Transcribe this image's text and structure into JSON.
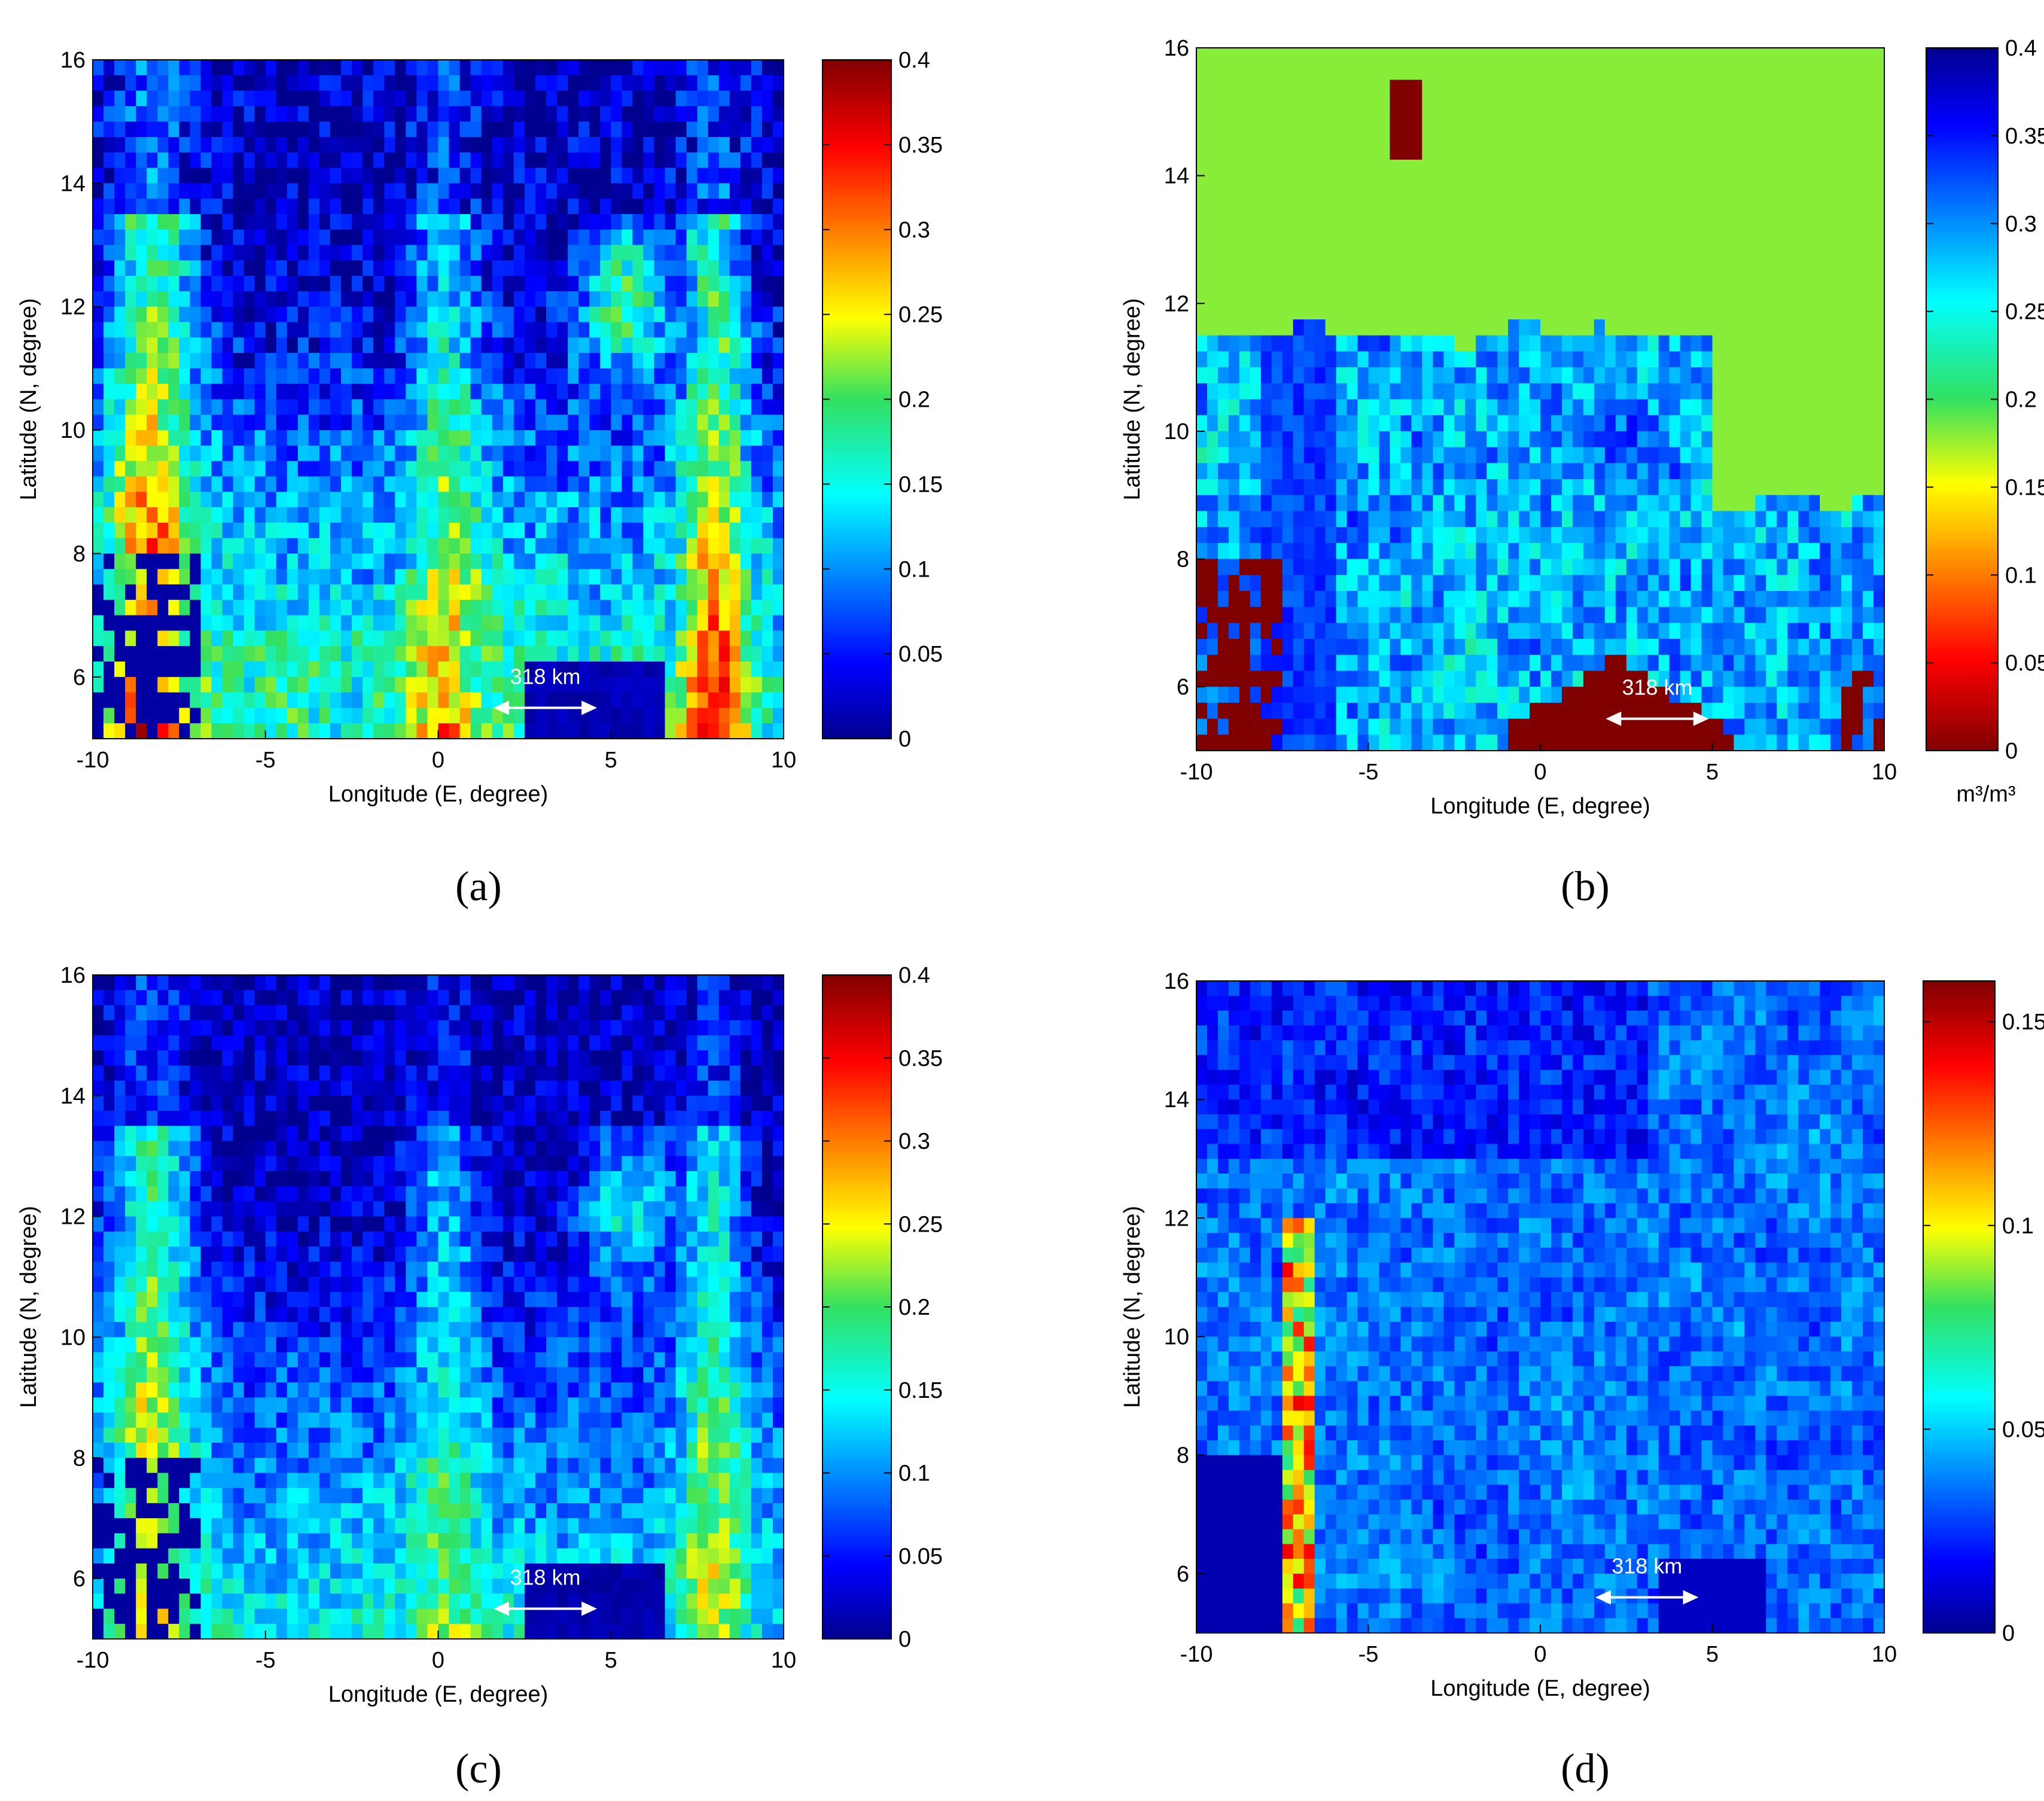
{
  "chart_data": [
    {
      "type": "heatmap",
      "panel_label": "(a)",
      "xlabel": "Longitude (E, degree)",
      "ylabel": "Latitude (N, degree)",
      "xlim": [
        -10,
        10
      ],
      "ylim": [
        5,
        16
      ],
      "xticks": [
        "-10",
        "-5",
        "0",
        "5",
        "10"
      ],
      "yticks": [
        "6",
        "8",
        "10",
        "12",
        "14",
        "16"
      ],
      "colorbar": {
        "range": [
          0,
          0.4
        ],
        "ticks": [
          "0",
          "0.05",
          "0.1",
          "0.15",
          "0.2",
          "0.25",
          "0.3",
          "0.35",
          "0.4"
        ],
        "colormap": "jet",
        "reversed": false,
        "unit": ""
      },
      "scalebar": {
        "label": "318 km",
        "from_lon": 1.6,
        "to_lon": 4.6,
        "lat": 5.5
      },
      "pattern": "wet-south",
      "seed": 11
    },
    {
      "type": "heatmap",
      "panel_label": "(b)",
      "xlabel": "Longitude (E, degree)",
      "ylabel": "Latitude (N, degree)",
      "xlim": [
        -10,
        10
      ],
      "ylim": [
        5,
        16
      ],
      "xticks": [
        "-10",
        "-5",
        "0",
        "5",
        "10"
      ],
      "yticks": [
        "6",
        "8",
        "10",
        "12",
        "14",
        "16"
      ],
      "colorbar": {
        "range": [
          0,
          0.4
        ],
        "ticks": [
          "0",
          "0.05",
          "0.1",
          "0.15",
          "0.2",
          "0.25",
          "0.3",
          "0.35",
          "0.4"
        ],
        "colormap": "jet",
        "reversed": true,
        "unit": "m³/m³"
      },
      "scalebar": {
        "label": "318 km",
        "from_lon": 1.9,
        "to_lon": 4.9,
        "lat": 5.5
      },
      "pattern": "dry-north",
      "seed": 23
    },
    {
      "type": "heatmap",
      "panel_label": "(c)",
      "xlabel": "Longitude (E, degree)",
      "ylabel": "Latitude (N, degree)",
      "xlim": [
        -10,
        10
      ],
      "ylim": [
        5,
        16
      ],
      "xticks": [
        "-10",
        "-5",
        "0",
        "5",
        "10"
      ],
      "yticks": [
        "6",
        "8",
        "10",
        "12",
        "14",
        "16"
      ],
      "colorbar": {
        "range": [
          0,
          0.4
        ],
        "ticks": [
          "0",
          "0.05",
          "0.1",
          "0.15",
          "0.2",
          "0.25",
          "0.3",
          "0.35",
          "0.4"
        ],
        "colormap": "jet",
        "reversed": false,
        "unit": ""
      },
      "scalebar": {
        "label": "318 km",
        "from_lon": 1.6,
        "to_lon": 4.6,
        "lat": 5.5
      },
      "pattern": "wet-south-muted",
      "seed": 37
    },
    {
      "type": "heatmap",
      "panel_label": "(d)",
      "xlabel": "Longitude (E, degree)",
      "ylabel": "Latitude (N, degree)",
      "xlim": [
        -10,
        10
      ],
      "ylim": [
        5,
        16
      ],
      "xticks": [
        "-10",
        "-5",
        "0",
        "5",
        "10"
      ],
      "yticks": [
        "6",
        "8",
        "10",
        "12",
        "14",
        "16"
      ],
      "colorbar": {
        "range": [
          0,
          0.16
        ],
        "ticks": [
          "0",
          "0.05",
          "0.1",
          "0.15"
        ],
        "tick_values": [
          0,
          0.05,
          0.1,
          0.15
        ],
        "colormap": "jet",
        "reversed": false,
        "unit": ""
      },
      "scalebar": {
        "label": "318 km",
        "from_lon": 1.6,
        "to_lon": 4.6,
        "lat": 5.6
      },
      "pattern": "low-blue",
      "seed": 53
    }
  ]
}
